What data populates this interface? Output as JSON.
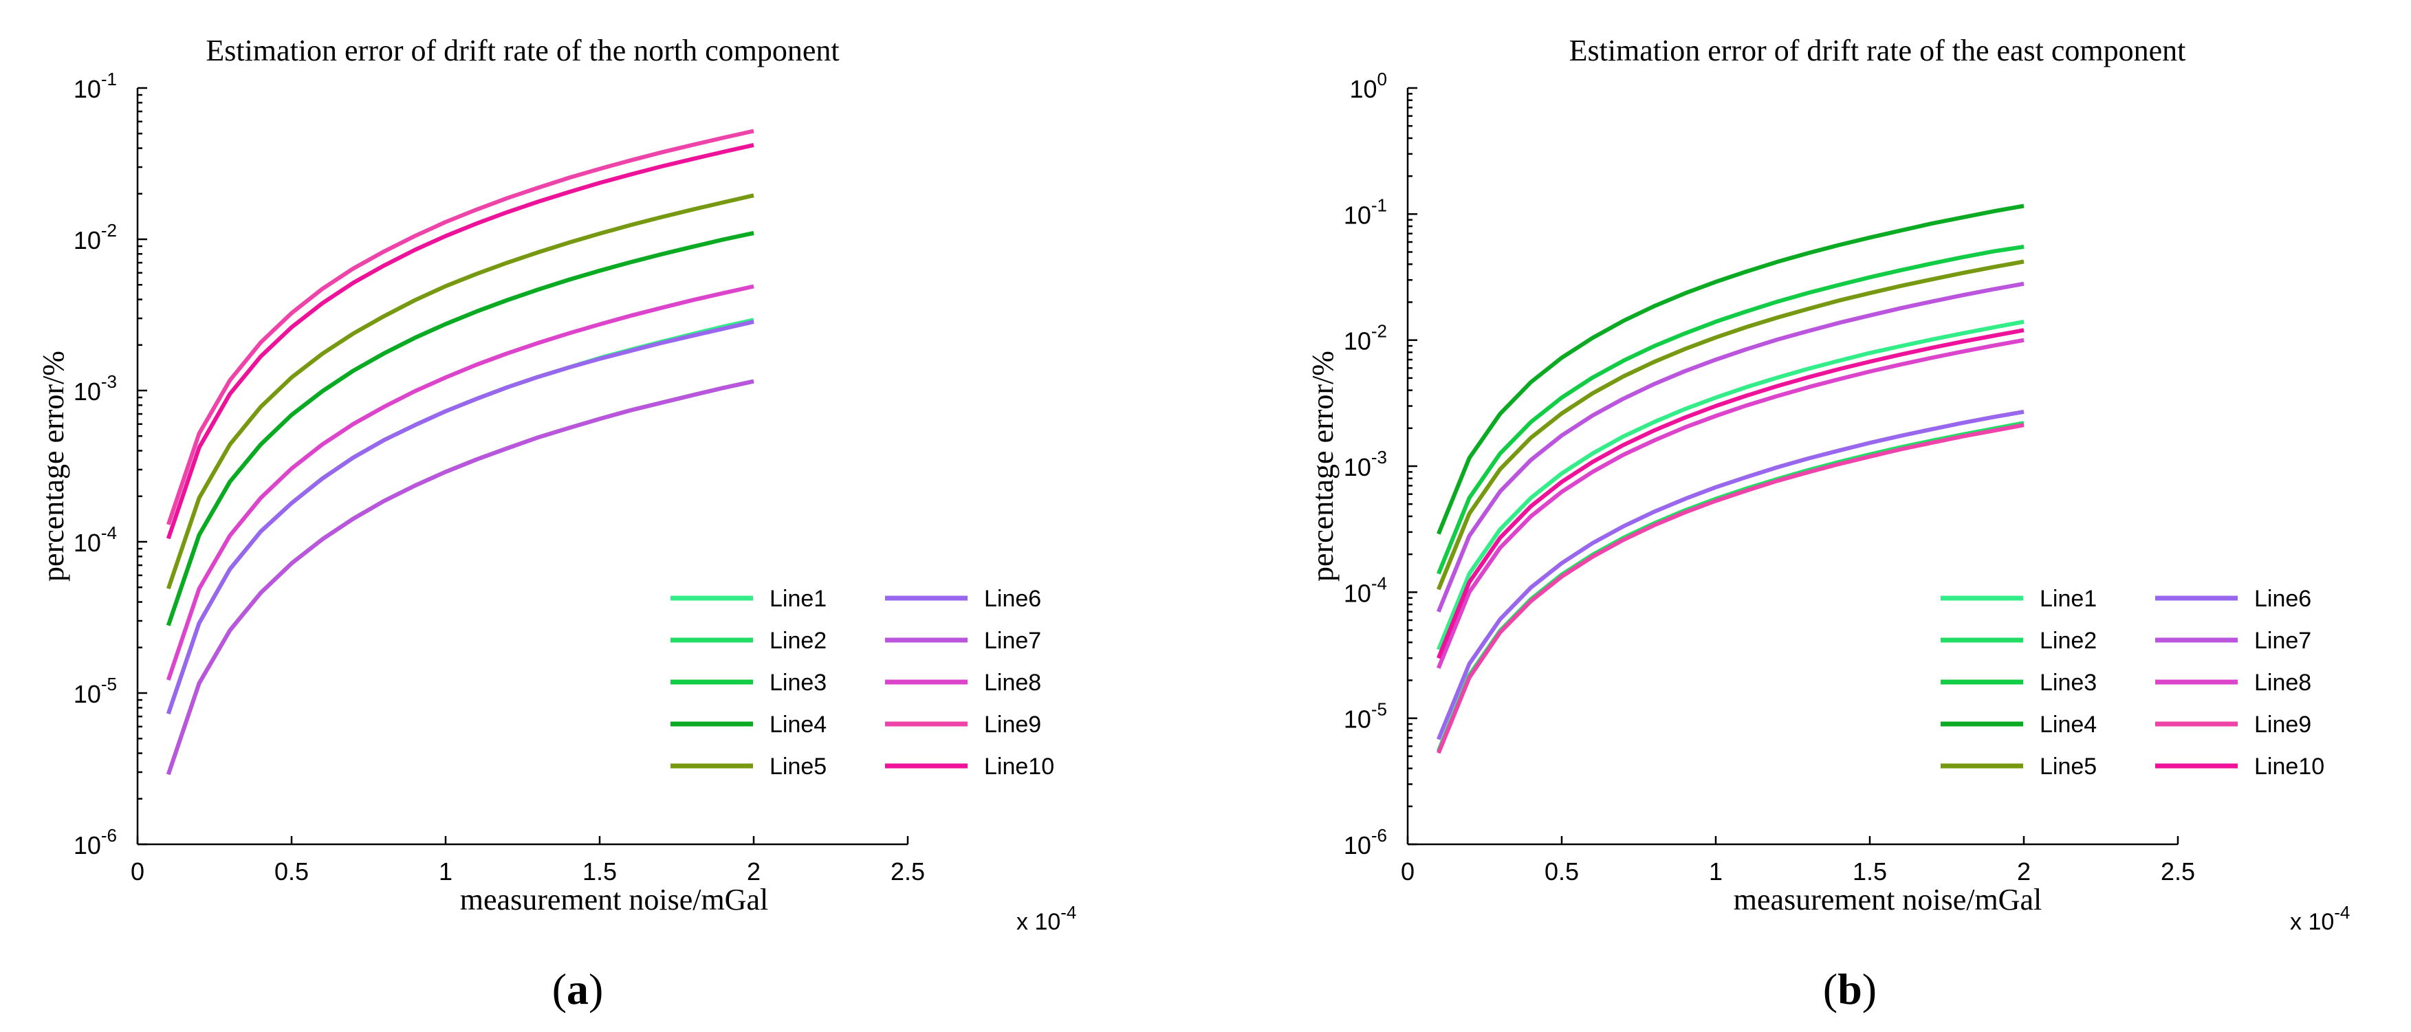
{
  "chart_data": [
    {
      "type": "line",
      "panel_label": "a",
      "title": "Estimation error of drift rate of the north component",
      "xlabel": "measurement noise/mGal",
      "ylabel": "percentage error/%",
      "x_scale_note": "x 10",
      "x_scale_exp": "-4",
      "x_multiplier": "1e-4",
      "xlim": [
        0,
        2.5
      ],
      "xticks": [
        "0",
        "0.5",
        "1",
        "1.5",
        "2",
        "2.5"
      ],
      "y_scale": "log",
      "ylim_exp": [
        -6,
        -1
      ],
      "yticks": [
        {
          "base": "10",
          "exp": "-6"
        },
        {
          "base": "10",
          "exp": "-5"
        },
        {
          "base": "10",
          "exp": "-4"
        },
        {
          "base": "10",
          "exp": "-3"
        },
        {
          "base": "10",
          "exp": "-2"
        },
        {
          "base": "10",
          "exp": "-1"
        }
      ],
      "x": [
        0.1,
        0.2,
        0.3,
        0.4,
        0.5,
        0.6,
        0.7,
        0.8,
        0.9,
        1.0,
        1.1,
        1.2,
        1.3,
        1.4,
        1.5,
        1.6,
        1.7,
        1.8,
        1.9,
        2.0
      ],
      "series": [
        {
          "name": "Line1",
          "color": "#33ee88",
          "values": [
            7.3e-06,
            2.9e-05,
            6.6e-05,
            0.000117,
            0.00018,
            0.000262,
            0.00036,
            0.00047,
            0.00059,
            0.00073,
            0.00088,
            0.00105,
            0.00123,
            0.00142,
            0.00164,
            0.00186,
            0.0021,
            0.00236,
            0.00264,
            0.00293
          ]
        },
        {
          "name": "Line2",
          "color": "#22dd66",
          "values": [
            2.9e-06,
            1.16e-05,
            2.6e-05,
            4.6e-05,
            7.2e-05,
            0.000104,
            0.000142,
            0.000186,
            0.000235,
            0.00029,
            0.00035,
            0.000415,
            0.00049,
            0.000565,
            0.00065,
            0.00074,
            0.00083,
            0.00093,
            0.00104,
            0.00115
          ]
        },
        {
          "name": "Line3",
          "color": "#11cc44",
          "values": [
            2.8e-05,
            0.000111,
            0.00025,
            0.00044,
            0.00069,
            0.00099,
            0.00135,
            0.00176,
            0.00223,
            0.00275,
            0.00333,
            0.00396,
            0.00465,
            0.0054,
            0.0062,
            0.00705,
            0.00795,
            0.0089,
            0.00995,
            0.011
          ]
        },
        {
          "name": "Line4",
          "color": "#0aaa22",
          "values": [
            2.8e-05,
            0.000111,
            0.00025,
            0.00044,
            0.00069,
            0.00099,
            0.00135,
            0.00176,
            0.00223,
            0.00275,
            0.00333,
            0.00396,
            0.00465,
            0.0054,
            0.0062,
            0.00705,
            0.00795,
            0.0089,
            0.00995,
            0.011
          ]
        },
        {
          "name": "Line5",
          "color": "#779911",
          "values": [
            4.9e-05,
            0.000195,
            0.00044,
            0.00078,
            0.00122,
            0.00175,
            0.00238,
            0.0031,
            0.00395,
            0.0049,
            0.0059,
            0.007,
            0.0082,
            0.0095,
            0.0109,
            0.0124,
            0.014,
            0.0157,
            0.0175,
            0.0195
          ]
        },
        {
          "name": "Line6",
          "color": "#9966ee",
          "values": [
            7.3e-06,
            2.9e-05,
            6.6e-05,
            0.000117,
            0.00018,
            0.000262,
            0.00036,
            0.00047,
            0.00059,
            0.00073,
            0.00088,
            0.00105,
            0.00123,
            0.00142,
            0.00162,
            0.00183,
            0.00206,
            0.0023,
            0.00256,
            0.00285
          ]
        },
        {
          "name": "Line7",
          "color": "#bb55dd",
          "values": [
            2.9e-06,
            1.16e-05,
            2.6e-05,
            4.6e-05,
            7.2e-05,
            0.000104,
            0.000142,
            0.000186,
            0.000235,
            0.00029,
            0.00035,
            0.000415,
            0.00049,
            0.000565,
            0.00065,
            0.00074,
            0.00083,
            0.00093,
            0.00104,
            0.00115
          ]
        },
        {
          "name": "Line8",
          "color": "#dd44cc",
          "values": [
            1.22e-05,
            4.9e-05,
            0.00011,
            0.000195,
            0.000305,
            0.00044,
            0.0006,
            0.00078,
            0.00099,
            0.00122,
            0.00148,
            0.00176,
            0.00206,
            0.00239,
            0.00274,
            0.00312,
            0.00352,
            0.00395,
            0.0044,
            0.00488
          ]
        },
        {
          "name": "Line9",
          "color": "#ee44aa",
          "values": [
            0.00013,
            0.00052,
            0.00117,
            0.00208,
            0.00325,
            0.0047,
            0.0064,
            0.0083,
            0.0105,
            0.013,
            0.0157,
            0.0187,
            0.0219,
            0.0255,
            0.0292,
            0.0332,
            0.0375,
            0.042,
            0.0468,
            0.052
          ]
        },
        {
          "name": "Line10",
          "color": "#ee1199",
          "values": [
            0.000105,
            0.00042,
            0.00095,
            0.00168,
            0.00262,
            0.00378,
            0.00515,
            0.0067,
            0.0085,
            0.0105,
            0.0127,
            0.0151,
            0.0177,
            0.0205,
            0.0236,
            0.0268,
            0.0303,
            0.0339,
            0.0378,
            0.042
          ]
        }
      ],
      "legend_position": "lower-right"
    },
    {
      "type": "line",
      "panel_label": "b",
      "title": "Estimation error of drift rate of the east component",
      "xlabel": "measurement noise/mGal",
      "ylabel": "percentage error/%",
      "x_scale_note": "x 10",
      "x_scale_exp": "-4",
      "x_multiplier": "1e-4",
      "xlim": [
        0,
        2.5
      ],
      "xticks": [
        "0",
        "0.5",
        "1",
        "1.5",
        "2",
        "2.5"
      ],
      "y_scale": "log",
      "ylim_exp": [
        -6,
        0
      ],
      "yticks": [
        {
          "base": "10",
          "exp": "-6"
        },
        {
          "base": "10",
          "exp": "-5"
        },
        {
          "base": "10",
          "exp": "-4"
        },
        {
          "base": "10",
          "exp": "-3"
        },
        {
          "base": "10",
          "exp": "-2"
        },
        {
          "base": "10",
          "exp": "-1"
        },
        {
          "base": "10",
          "exp": "0"
        }
      ],
      "x": [
        0.1,
        0.2,
        0.3,
        0.4,
        0.5,
        0.6,
        0.7,
        0.8,
        0.9,
        1.0,
        1.1,
        1.2,
        1.3,
        1.4,
        1.5,
        1.6,
        1.7,
        1.8,
        1.9,
        2.0
      ],
      "series": [
        {
          "name": "Line1",
          "color": "#33ee88",
          "values": [
            3.5e-05,
            0.00014,
            0.000315,
            0.00056,
            0.000875,
            0.00126,
            0.00172,
            0.00224,
            0.00284,
            0.0035,
            0.00424,
            0.00504,
            0.00592,
            0.00686,
            0.0079,
            0.00895,
            0.0101,
            0.0113,
            0.0126,
            0.014
          ]
        },
        {
          "name": "Line2",
          "color": "#22dd66",
          "values": [
            5.5e-06,
            2.2e-05,
            4.95e-05,
            8.8e-05,
            0.000138,
            0.000198,
            0.00027,
            0.000352,
            0.000446,
            0.00055,
            0.000665,
            0.00079,
            0.00093,
            0.00108,
            0.00124,
            0.00141,
            0.00159,
            0.00178,
            0.00198,
            0.0022
          ]
        },
        {
          "name": "Line3",
          "color": "#11cc44",
          "values": [
            0.00014,
            0.00056,
            0.00126,
            0.00224,
            0.0035,
            0.00504,
            0.00686,
            0.00896,
            0.0113,
            0.014,
            0.0169,
            0.0202,
            0.0237,
            0.0274,
            0.0315,
            0.0358,
            0.0405,
            0.0454,
            0.0505,
            0.055
          ]
        },
        {
          "name": "Line4",
          "color": "#0aaa22",
          "values": [
            0.00029,
            0.00116,
            0.0026,
            0.00464,
            0.00725,
            0.0104,
            0.0142,
            0.0186,
            0.0235,
            0.029,
            0.035,
            0.0418,
            0.049,
            0.0568,
            0.065,
            0.074,
            0.084,
            0.094,
            0.105,
            0.116
          ]
        },
        {
          "name": "Line5",
          "color": "#779911",
          "values": [
            0.000105,
            0.00042,
            0.000945,
            0.00168,
            0.00262,
            0.00378,
            0.00515,
            0.00672,
            0.0085,
            0.0105,
            0.0127,
            0.0151,
            0.0177,
            0.0206,
            0.0236,
            0.0269,
            0.0303,
            0.034,
            0.0379,
            0.042
          ]
        },
        {
          "name": "Line6",
          "color": "#9966ee",
          "values": [
            6.8e-06,
            2.7e-05,
            6.1e-05,
            0.000109,
            0.00017,
            0.000245,
            0.000333,
            0.000435,
            0.00055,
            0.00068,
            0.00082,
            0.00098,
            0.00115,
            0.00133,
            0.00153,
            0.00174,
            0.00196,
            0.0022,
            0.00245,
            0.0027
          ]
        },
        {
          "name": "Line7",
          "color": "#bb55dd",
          "values": [
            7e-05,
            0.00028,
            0.00063,
            0.00112,
            0.00175,
            0.00252,
            0.00343,
            0.00448,
            0.00567,
            0.007,
            0.00847,
            0.0101,
            0.0118,
            0.0137,
            0.0157,
            0.0179,
            0.0202,
            0.0227,
            0.0253,
            0.028
          ]
        },
        {
          "name": "Line8",
          "color": "#dd44cc",
          "values": [
            2.5e-05,
            0.0001,
            0.000225,
            0.0004,
            0.000625,
            0.0009,
            0.00123,
            0.0016,
            0.00203,
            0.0025,
            0.00303,
            0.0036,
            0.00423,
            0.0049,
            0.00563,
            0.0064,
            0.00723,
            0.0081,
            0.00903,
            0.01
          ]
        },
        {
          "name": "Line9",
          "color": "#ee44aa",
          "values": [
            5.3e-06,
            2.1e-05,
            4.8e-05,
            8.5e-05,
            0.000133,
            0.000191,
            0.00026,
            0.00034,
            0.00043,
            0.00053,
            0.00064,
            0.000765,
            0.000895,
            0.00104,
            0.00119,
            0.00136,
            0.00153,
            0.00172,
            0.00191,
            0.00212
          ]
        },
        {
          "name": "Line10",
          "color": "#ee1199",
          "values": [
            3e-05,
            0.00012,
            0.00027,
            0.00048,
            0.00075,
            0.00108,
            0.00147,
            0.00192,
            0.00243,
            0.003,
            0.00363,
            0.00432,
            0.00507,
            0.00588,
            0.00675,
            0.00768,
            0.00867,
            0.00972,
            0.0108,
            0.012
          ]
        }
      ],
      "legend_position": "lower-right"
    }
  ]
}
